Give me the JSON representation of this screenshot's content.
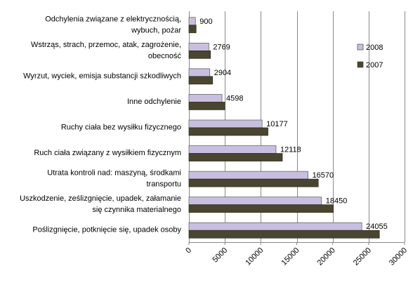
{
  "chart_data": {
    "type": "bar",
    "orientation": "horizontal",
    "categories": [
      [
        "Odchylenia związane z elektrycznością,",
        "wybuch, pożar"
      ],
      [
        "Wstrząs, strach, przemoc, atak, zagrożenie,",
        "obecność"
      ],
      [
        "Wyrzut, wyciek, emisja substancji szkodliwych"
      ],
      [
        "Inne odchylenie"
      ],
      [
        "Ruchy ciała bez wysiłku fizycznego"
      ],
      [
        "Ruch ciała związany z wysiłkiem fizycznym"
      ],
      [
        "Utrata kontroli nad: maszyną, środkami",
        "transportu"
      ],
      [
        "Uszkodzenie, ześlizgnięcie, upadek, załamanie",
        "się czynnika materialnego"
      ],
      [
        "Poślizgnięcie, potknięcie się, upadek osoby"
      ]
    ],
    "series": [
      {
        "name": "2008",
        "color": "#c8bfe0",
        "values": [
          900,
          2769,
          2904,
          4598,
          10177,
          12118,
          16570,
          18450,
          24055
        ],
        "data_labels": [
          "900",
          "2769",
          "2904",
          "4598",
          "10177",
          "12118",
          "16570",
          "18450",
          "24055"
        ]
      },
      {
        "name": "2007",
        "color": "#4a4530",
        "values": [
          1000,
          3000,
          3300,
          5000,
          11000,
          13000,
          18000,
          20100,
          26500
        ]
      }
    ],
    "xlim": [
      0,
      30000
    ],
    "xticks": [
      "0",
      "5000",
      "10000",
      "15000",
      "20000",
      "25000",
      "30000"
    ],
    "grid": "vertical",
    "legend": "right"
  }
}
